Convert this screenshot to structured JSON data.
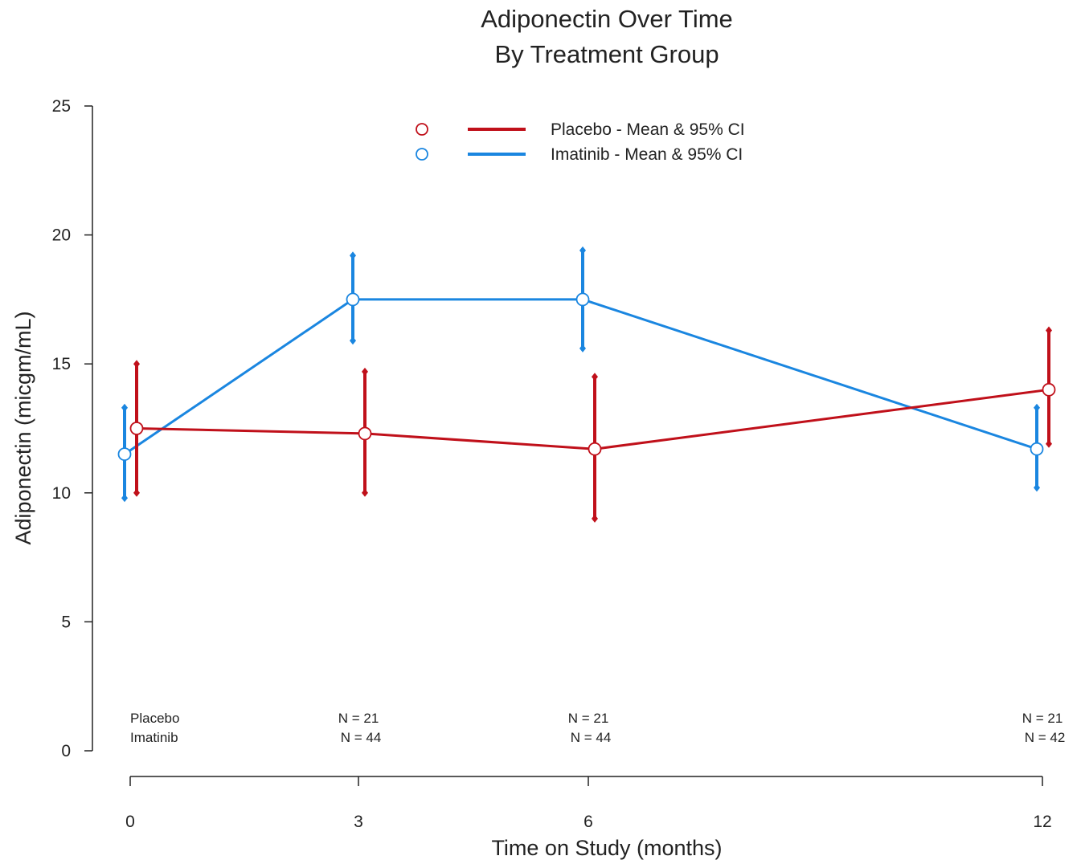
{
  "chart_data": {
    "type": "line",
    "title": [
      "Adiponectin Over Time",
      "By Treatment Group"
    ],
    "xlabel": "Time on Study (months)",
    "ylabel": "Adiponectin (micgm/mL)",
    "x": [
      0,
      3,
      6,
      12
    ],
    "x_tick_labels": [
      "0",
      "3",
      "6",
      "12"
    ],
    "y_ticks": [
      0,
      5,
      10,
      15,
      20,
      25
    ],
    "ylim": [
      0,
      25
    ],
    "legend_placement": "top-center",
    "series": [
      {
        "name": "Placebo - Mean & 95% CI",
        "color": "#c0101a",
        "mean": [
          12.5,
          12.3,
          11.7,
          14.0
        ],
        "ci_low": [
          10.0,
          10.0,
          9.0,
          11.9
        ],
        "ci_high": [
          15.0,
          14.7,
          14.5,
          16.3
        ]
      },
      {
        "name": "Imatinib - Mean & 95% CI",
        "color": "#1a86e0",
        "mean": [
          11.5,
          17.5,
          17.5,
          11.7
        ],
        "ci_low": [
          9.8,
          15.9,
          15.6,
          10.2
        ],
        "ci_high": [
          13.3,
          19.2,
          19.4,
          13.3
        ]
      }
    ],
    "n_table": {
      "row_labels": [
        "Placebo",
        "Imatinib"
      ],
      "columns": [
        {
          "x": 3,
          "values": [
            "N = 21",
            "N = 44"
          ]
        },
        {
          "x": 6,
          "values": [
            "N = 21",
            "N = 44"
          ]
        },
        {
          "x": 12,
          "values": [
            "N = 21",
            "N = 42"
          ]
        }
      ]
    }
  }
}
